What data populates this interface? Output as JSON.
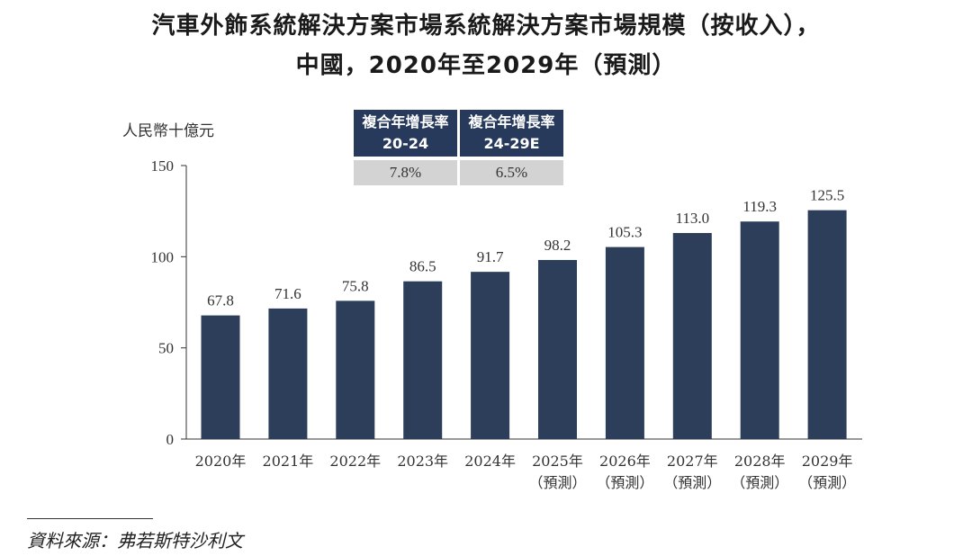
{
  "title_line1": "汽車外飾系統解決方案市場系統解決方案市場規模（按收入），",
  "title_line2": "中國，2020年至2029年（預測）",
  "unit_label": "人民幣十億元",
  "cagr": [
    {
      "head_line1": "複合年增長率",
      "head_line2": "20-24",
      "value": "7.8%"
    },
    {
      "head_line1": "複合年增長率",
      "head_line2": "24-29E",
      "value": "6.5%"
    }
  ],
  "source": "資料來源：弗若斯特沙利文",
  "colors": {
    "bar": "#2c3e5a",
    "cagr_header": "#273a5c",
    "cagr_value_bg": "#d3d3d3"
  },
  "chart_data": {
    "type": "bar",
    "categories": [
      "2020年",
      "2021年",
      "2022年",
      "2023年",
      "2024年",
      "2025年",
      "2026年",
      "2027年",
      "2028年",
      "2029年"
    ],
    "category_sublabels": [
      "",
      "",
      "",
      "",
      "",
      "（預測）",
      "（預測）",
      "（預測）",
      "（預測）",
      "（預測）"
    ],
    "values": [
      67.8,
      71.6,
      75.8,
      86.5,
      91.7,
      98.2,
      105.3,
      113.0,
      119.3,
      125.5
    ],
    "value_labels": [
      "67.8",
      "71.6",
      "75.8",
      "86.5",
      "91.7",
      "98.2",
      "105.3",
      "113.0",
      "119.3",
      "125.5"
    ],
    "yticks": [
      "0",
      "50",
      "100",
      "150"
    ],
    "ylim": [
      0,
      150
    ],
    "grid": false,
    "ylabel": "人民幣十億元"
  }
}
